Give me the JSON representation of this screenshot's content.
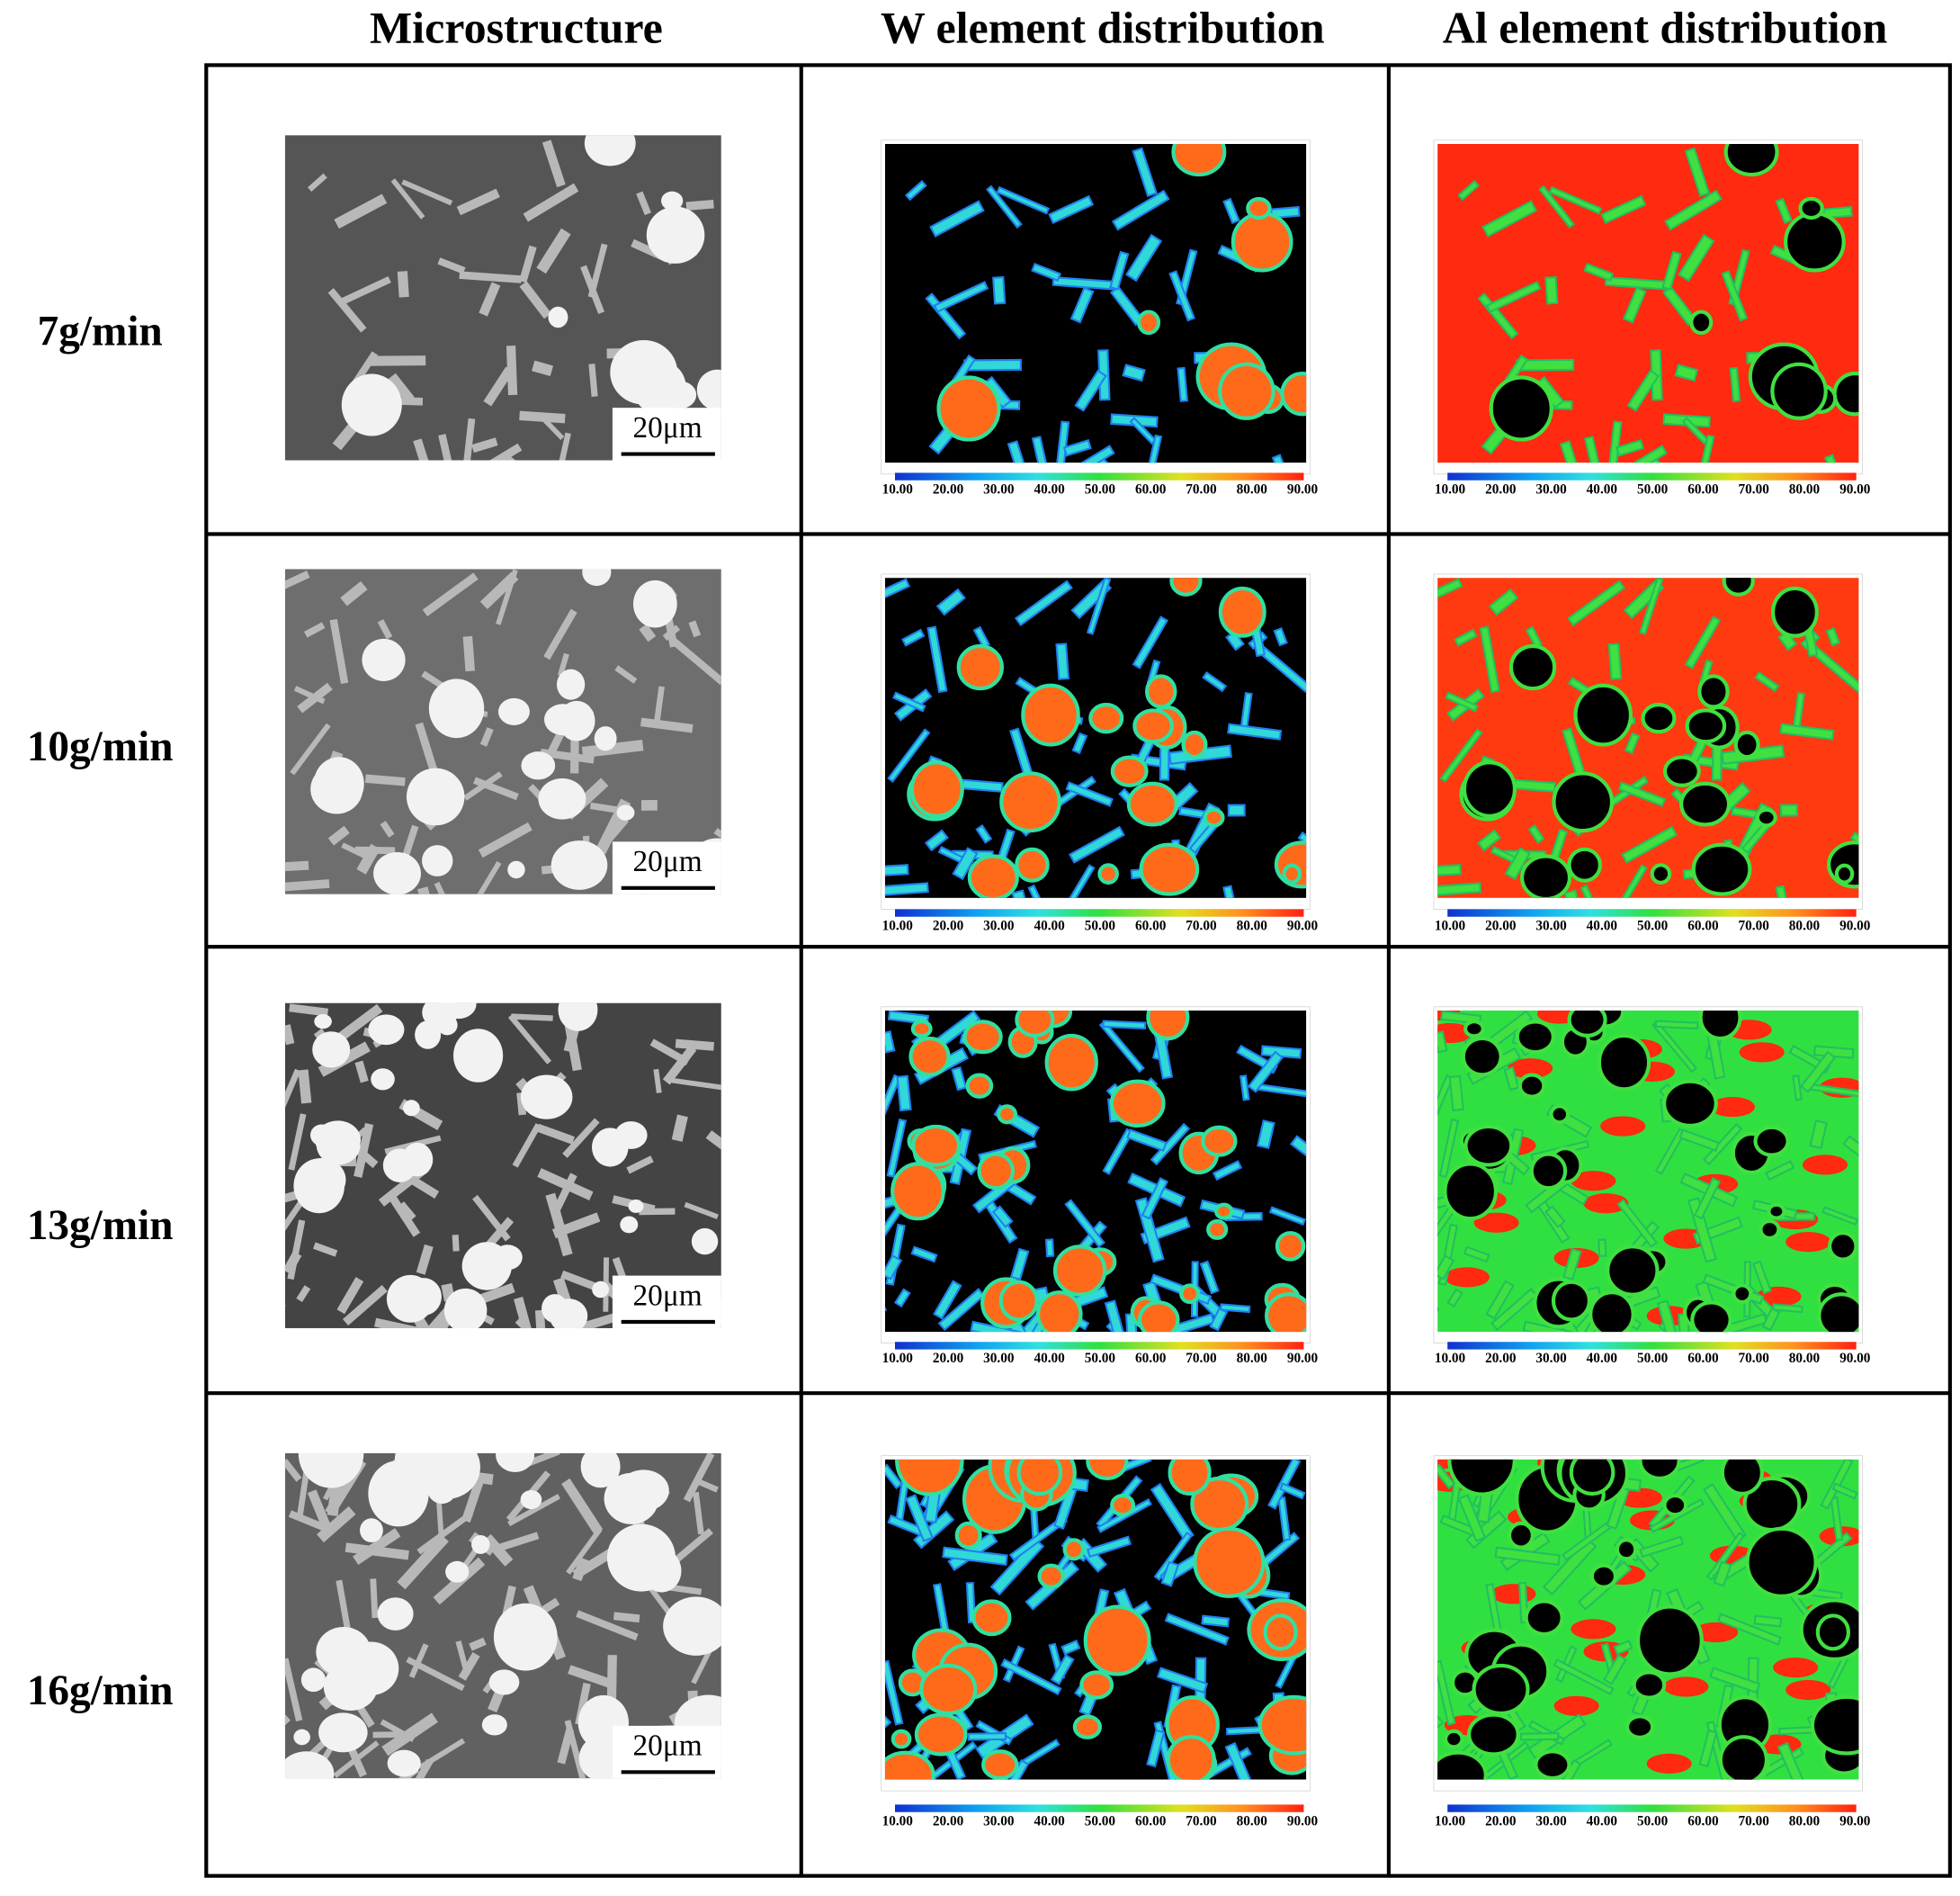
{
  "headers": [
    "Microstructure",
    "W element distribution",
    "Al element distribution"
  ],
  "rows": [
    {
      "label": "7g/min",
      "scale_bar": "20μm"
    },
    {
      "label": "10g/min",
      "scale_bar": "20μm"
    },
    {
      "label": "13g/min",
      "scale_bar": "20μm"
    },
    {
      "label": "16g/min",
      "scale_bar": "20μm"
    }
  ],
  "colorbar_ticks": [
    "10.00",
    "20.00",
    "30.00",
    "40.00",
    "50.00",
    "60.00",
    "70.00",
    "80.00",
    "90.00"
  ]
}
